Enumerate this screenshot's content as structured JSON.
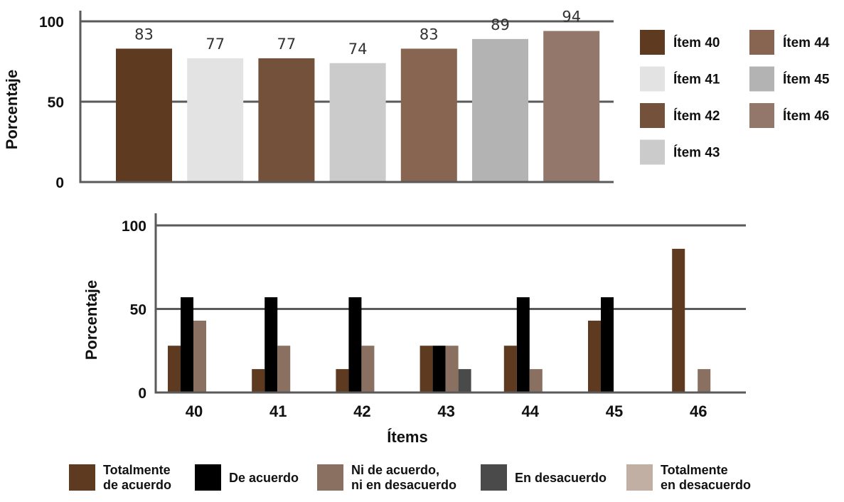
{
  "colors": {
    "axis": "#5a5a5a",
    "grid": "#5a5a5a"
  },
  "chart_data": [
    {
      "type": "bar",
      "ylabel": "Porcentaje",
      "ylim": [
        0,
        100
      ],
      "yticks": [
        "0",
        "50",
        "100"
      ],
      "grid": true,
      "legend_position": "right",
      "categories": [
        "Ítem 40",
        "Ítem 41",
        "Ítem 42",
        "Ítem 43",
        "Ítem 44",
        "Ítem 45",
        "Ítem 46"
      ],
      "values": [
        83,
        77,
        77,
        74,
        83,
        89,
        94
      ],
      "labels": [
        "83",
        "77",
        "77",
        "74",
        "83",
        "89",
        "94"
      ],
      "colors": [
        "#5e3a20",
        "#e3e3e3",
        "#74513a",
        "#cbcbcb",
        "#876550",
        "#b3b3b3",
        "#93776a"
      ]
    },
    {
      "type": "bar",
      "xlabel": "Ítems",
      "ylabel": "Porcentaje",
      "ylim": [
        0,
        100
      ],
      "yticks": [
        "0",
        "50",
        "100"
      ],
      "grid": true,
      "legend_position": "bottom",
      "categories": [
        "40",
        "41",
        "42",
        "43",
        "44",
        "45",
        "46"
      ],
      "series": [
        {
          "name": "Totalmente de acuerdo",
          "lines": [
            "Totalmente",
            "de acuerdo"
          ],
          "color": "#5e3a20",
          "values": [
            28,
            14,
            14,
            28,
            28,
            43,
            86
          ]
        },
        {
          "name": "De acuerdo",
          "lines": [
            "De acuerdo"
          ],
          "color": "#000000",
          "values": [
            57,
            57,
            57,
            28,
            57,
            57,
            0
          ]
        },
        {
          "name": "Ni de acuerdo, ni en desacuerdo",
          "lines": [
            "Ni de acuerdo,",
            "ni en desacuerdo"
          ],
          "color": "#8a7060",
          "values": [
            43,
            28,
            28,
            28,
            14,
            0,
            14
          ]
        },
        {
          "name": "En desacuerdo",
          "lines": [
            "En desacuerdo"
          ],
          "color": "#4a4a4a",
          "values": [
            0,
            0,
            0,
            14,
            0,
            0,
            0
          ]
        },
        {
          "name": "Totalmente en desacuerdo",
          "lines": [
            "Totalmente",
            "en desacuerdo"
          ],
          "color": "#c1afa3",
          "values": [
            0,
            0,
            0,
            0,
            0,
            0,
            0
          ]
        }
      ]
    }
  ]
}
